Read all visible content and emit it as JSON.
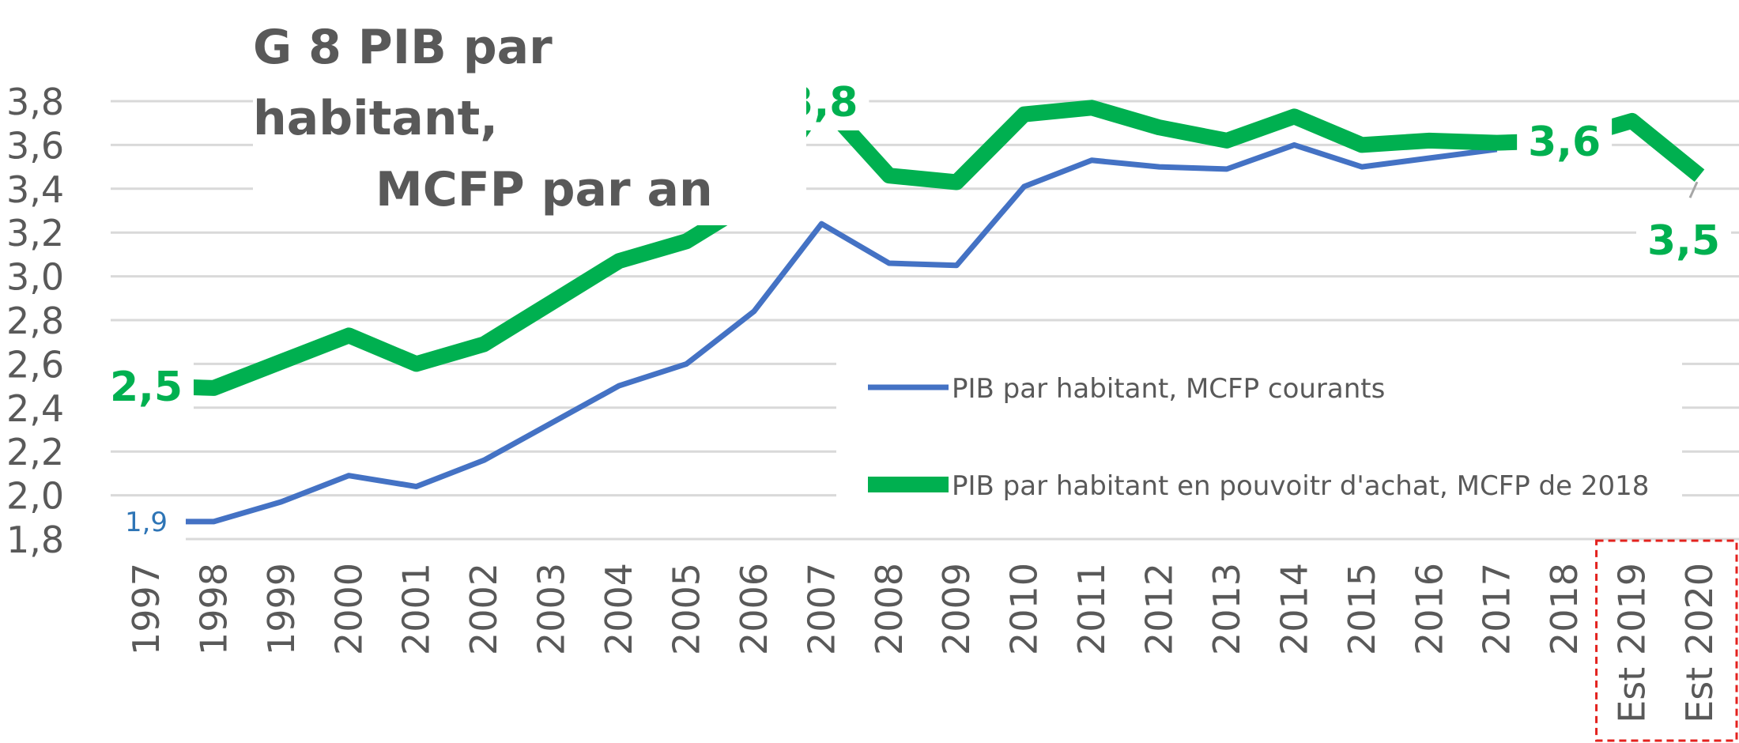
{
  "title": {
    "line1": "G 8  PIB par habitant,",
    "line2": "MCFP par an"
  },
  "colors": {
    "blue": "#4472C4",
    "green": "#00B050",
    "axis_text": "#595959",
    "grid": "#D9D9D9",
    "highlight": "#E3221E",
    "blue_label": "#2E75B6"
  },
  "chart_data": {
    "type": "line",
    "categories": [
      "1997",
      "1998",
      "1999",
      "2000",
      "2001",
      "2002",
      "2003",
      "2004",
      "2005",
      "2006",
      "2007",
      "2008",
      "2009",
      "2010",
      "2011",
      "2012",
      "2013",
      "2014",
      "2015",
      "2016",
      "2017",
      "2018",
      "Est 2019",
      "Est 2020"
    ],
    "ylim": [
      1.8,
      3.8
    ],
    "yticks": [
      "1,8",
      "2,0",
      "2,2",
      "2,4",
      "2,6",
      "2,8",
      "3,0",
      "3,2",
      "3,4",
      "3,6",
      "3,8"
    ],
    "grid": true,
    "legend_position": "center-right",
    "highlight_categories": [
      "Est 2019",
      "Est 2020"
    ],
    "series": [
      {
        "name": "PIB par habitant, MCFP courants",
        "color": "#4472C4",
        "values": [
          1.88,
          1.88,
          1.97,
          2.09,
          2.04,
          2.16,
          2.33,
          2.5,
          2.6,
          2.84,
          3.24,
          3.06,
          3.05,
          3.41,
          3.53,
          3.5,
          3.49,
          3.6,
          3.5,
          3.54,
          3.58,
          null,
          null,
          null
        ]
      },
      {
        "name": "PIB par habitant en pouvoitr d'achat, MCFP de 2018",
        "color": "#00B050",
        "values": [
          2.5,
          2.49,
          2.61,
          2.73,
          2.6,
          2.69,
          2.88,
          3.07,
          3.16,
          3.35,
          3.8,
          3.46,
          3.43,
          3.74,
          3.77,
          3.68,
          3.62,
          3.73,
          3.6,
          3.62,
          3.61,
          3.62,
          3.71,
          3.46
        ]
      }
    ],
    "data_labels": [
      {
        "series": 1,
        "index": 0,
        "text": "1,9"
      },
      {
        "series": 2,
        "index": 0,
        "text": "2,5"
      },
      {
        "series": 2,
        "index": 10,
        "text": "3,8"
      },
      {
        "series": 2,
        "index": 21,
        "text": "3,6"
      },
      {
        "series": 2,
        "index": 23,
        "text": "3,5"
      }
    ]
  }
}
